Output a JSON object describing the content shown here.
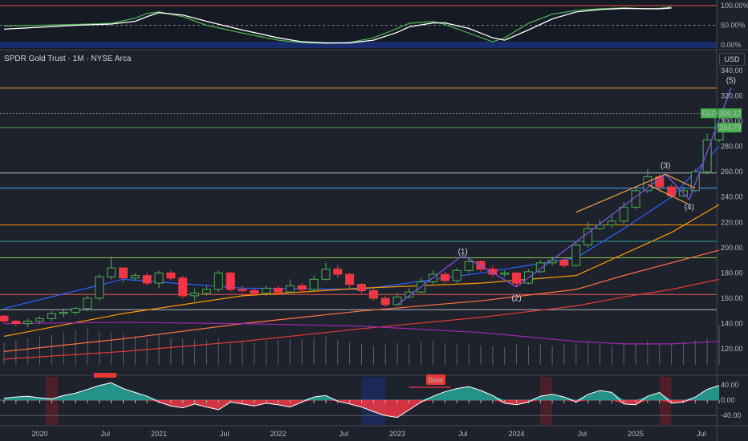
{
  "header": {
    "title": "SPDR Gold Trust · 1M · NYSE Arca",
    "currency_button": "USD"
  },
  "chart_data": [
    {
      "type": "line",
      "panel": "oscillator",
      "ylim": [
        0,
        100
      ],
      "yticks": [
        "100.00%",
        "50.00%",
        "0.00%"
      ],
      "series": [
        {
          "color": "#4caf50",
          "values": [
            [
              0,
              48
            ],
            [
              3,
              50
            ],
            [
              6,
              52
            ],
            [
              9,
              55
            ],
            [
              11,
              68
            ],
            [
              12,
              80
            ],
            [
              13,
              84
            ],
            [
              15,
              72
            ],
            [
              17,
              50
            ],
            [
              20,
              30
            ],
            [
              23,
              12
            ],
            [
              25,
              6
            ],
            [
              27,
              4
            ],
            [
              29,
              6
            ],
            [
              31,
              18
            ],
            [
              33,
              42
            ],
            [
              34,
              55
            ],
            [
              36,
              60
            ],
            [
              37,
              52
            ],
            [
              39,
              30
            ],
            [
              41,
              8
            ],
            [
              42,
              18
            ],
            [
              44,
              55
            ],
            [
              46,
              78
            ],
            [
              48,
              88
            ],
            [
              50,
              92
            ],
            [
              52,
              94
            ],
            [
              54,
              92
            ],
            [
              55,
              93
            ],
            [
              56,
              97
            ]
          ]
        },
        {
          "color": "#ffffff",
          "values": [
            [
              0,
              40
            ],
            [
              3,
              45
            ],
            [
              6,
              50
            ],
            [
              9,
              53
            ],
            [
              11,
              60
            ],
            [
              12,
              72
            ],
            [
              13,
              82
            ],
            [
              15,
              76
            ],
            [
              17,
              60
            ],
            [
              20,
              38
            ],
            [
              23,
              18
            ],
            [
              25,
              8
            ],
            [
              27,
              5
            ],
            [
              29,
              5
            ],
            [
              31,
              12
            ],
            [
              33,
              32
            ],
            [
              34,
              46
            ],
            [
              36,
              56
            ],
            [
              37,
              56
            ],
            [
              39,
              42
            ],
            [
              41,
              18
            ],
            [
              42,
              12
            ],
            [
              44,
              38
            ],
            [
              46,
              66
            ],
            [
              48,
              84
            ],
            [
              50,
              90
            ],
            [
              52,
              93
            ],
            [
              54,
              92
            ],
            [
              55,
              92
            ],
            [
              56,
              94
            ]
          ]
        }
      ]
    },
    {
      "type": "bar",
      "panel": "price",
      "ylim": [
        110,
        350
      ],
      "yticks": [
        "340.00",
        "320.00",
        "300.00",
        "280.00",
        "260.00",
        "240.00",
        "220.00",
        "200.00",
        "180.00",
        "160.00",
        "140.00",
        "120.00"
      ],
      "xticks": [
        {
          "label": "2020",
          "i": 3
        },
        {
          "label": "Jul",
          "i": 8.5
        },
        {
          "label": "2021",
          "i": 13
        },
        {
          "label": "Jul",
          "i": 18.5
        },
        {
          "label": "2022",
          "i": 23
        },
        {
          "label": "Jul",
          "i": 28.5
        },
        {
          "label": "2023",
          "i": 33
        },
        {
          "label": "Jul",
          "i": 38.5
        },
        {
          "label": "2024",
          "i": 43
        },
        {
          "label": "Jul",
          "i": 48.5
        },
        {
          "label": "2025",
          "i": 53
        },
        {
          "label": "Jul",
          "i": 58.5
        }
      ],
      "horizontal_levels": [
        {
          "value": 326,
          "color": "#f0a040"
        },
        {
          "value": 306,
          "color": "#787b86",
          "dotted": true
        },
        {
          "value": 294.8,
          "color": "#4caf50"
        },
        {
          "value": 259,
          "color": "#b2b5be"
        },
        {
          "value": 247,
          "color": "#42a5f5"
        },
        {
          "value": 218,
          "color": "#ff9800"
        },
        {
          "value": 205,
          "color": "#26a69a"
        },
        {
          "value": 192,
          "color": "#8bc34a"
        },
        {
          "value": 163,
          "color": "#ef5350"
        },
        {
          "value": 151,
          "color": "#b2b5be"
        }
      ],
      "candles": [
        [
          146,
          142,
          147,
          140
        ],
        [
          142,
          140,
          143,
          138
        ],
        [
          140,
          142,
          144,
          137
        ],
        [
          142,
          144,
          146,
          140
        ],
        [
          144,
          148,
          150,
          142
        ],
        [
          148,
          149,
          152,
          145
        ],
        [
          149,
          152,
          153,
          147
        ],
        [
          152,
          160,
          162,
          150
        ],
        [
          160,
          177,
          179,
          158
        ],
        [
          177,
          184,
          193,
          175
        ],
        [
          184,
          176,
          184,
          172
        ],
        [
          176,
          178,
          180,
          174
        ],
        [
          178,
          172,
          180,
          170
        ],
        [
          172,
          180,
          182,
          168
        ],
        [
          180,
          176,
          182,
          174
        ],
        [
          176,
          162,
          178,
          160
        ],
        [
          162,
          164,
          168,
          158
        ],
        [
          164,
          167,
          170,
          162
        ],
        [
          167,
          180,
          182,
          165
        ],
        [
          180,
          167,
          181,
          165
        ],
        [
          167,
          166,
          170,
          164
        ],
        [
          166,
          164,
          168,
          162
        ],
        [
          164,
          168,
          170,
          162
        ],
        [
          168,
          165,
          170,
          163
        ],
        [
          165,
          170,
          175,
          164
        ],
        [
          170,
          167,
          172,
          165
        ],
        [
          167,
          175,
          178,
          166
        ],
        [
          175,
          183,
          188,
          174
        ],
        [
          183,
          179,
          186,
          176
        ],
        [
          179,
          171,
          180,
          168
        ],
        [
          171,
          166,
          172,
          164
        ],
        [
          166,
          160,
          168,
          158
        ],
        [
          160,
          155,
          162,
          153
        ],
        [
          155,
          161,
          164,
          154
        ],
        [
          161,
          165,
          168,
          160
        ],
        [
          165,
          173,
          176,
          164
        ],
        [
          173,
          179,
          182,
          171
        ],
        [
          179,
          174,
          181,
          172
        ],
        [
          174,
          182,
          184,
          172
        ],
        [
          182,
          189,
          193,
          180
        ],
        [
          189,
          183,
          190,
          181
        ],
        [
          183,
          179,
          186,
          177
        ],
        [
          179,
          180,
          182,
          177
        ],
        [
          180,
          172,
          181,
          169
        ],
        [
          172,
          181,
          183,
          171
        ],
        [
          181,
          188,
          190,
          180
        ],
        [
          188,
          190,
          193,
          186
        ],
        [
          190,
          186,
          192,
          184
        ],
        [
          186,
          202,
          205,
          185
        ],
        [
          202,
          215,
          220,
          200
        ],
        [
          215,
          218,
          222,
          214
        ],
        [
          218,
          221,
          225,
          216
        ],
        [
          221,
          232,
          236,
          219
        ],
        [
          232,
          245,
          248,
          230
        ],
        [
          245,
          256,
          262,
          243
        ],
        [
          256,
          248,
          258,
          244
        ],
        [
          248,
          241,
          250,
          239
        ],
        [
          241,
          245,
          248,
          240
        ],
        [
          245,
          260,
          262,
          244
        ],
        [
          260,
          285,
          290,
          258
        ],
        [
          285,
          306,
          308,
          283
        ]
      ],
      "moving_averages": [
        {
          "color": "#2962ff",
          "values": [
            [
              0,
              152
            ],
            [
              10,
              175
            ],
            [
              20,
              168
            ],
            [
              30,
              167
            ],
            [
              40,
              180
            ],
            [
              48,
              192
            ],
            [
              52,
              215
            ],
            [
              56,
              240
            ],
            [
              60,
              280
            ]
          ]
        },
        {
          "color": "#ff9800",
          "values": [
            [
              0,
              130
            ],
            [
              10,
              148
            ],
            [
              20,
              162
            ],
            [
              30,
              168
            ],
            [
              40,
              172
            ],
            [
              48,
              178
            ],
            [
              52,
              195
            ],
            [
              56,
              212
            ],
            [
              60,
              234
            ]
          ]
        },
        {
          "color": "#ff7043",
          "values": [
            [
              0,
              118
            ],
            [
              10,
              128
            ],
            [
              20,
              140
            ],
            [
              30,
              150
            ],
            [
              40,
              158
            ],
            [
              48,
              167
            ],
            [
              52,
              178
            ],
            [
              56,
              188
            ],
            [
              60,
              198
            ]
          ]
        },
        {
          "color": "#e53935",
          "values": [
            [
              0,
              112
            ],
            [
              10,
              118
            ],
            [
              20,
              126
            ],
            [
              30,
              136
            ],
            [
              40,
              145
            ],
            [
              48,
              154
            ],
            [
              52,
              161
            ],
            [
              56,
              167
            ],
            [
              60,
              175
            ]
          ]
        },
        {
          "color": "#9c27b0",
          "values": [
            [
              0,
              140
            ],
            [
              10,
              141
            ],
            [
              20,
              140
            ],
            [
              30,
              138
            ],
            [
              40,
              133
            ],
            [
              48,
              126
            ],
            [
              52,
              124
            ],
            [
              56,
              124
            ],
            [
              60,
              126
            ]
          ]
        }
      ],
      "volume": [
        25,
        28,
        30,
        32,
        34,
        36,
        40,
        42,
        38,
        36,
        35,
        33,
        30,
        34,
        31,
        30,
        29,
        28,
        30,
        27,
        26,
        25,
        27,
        28,
        30,
        29,
        31,
        32,
        28,
        26,
        24,
        22,
        23,
        25,
        24,
        26,
        27,
        25,
        23,
        24,
        22,
        21,
        20,
        23,
        22,
        24,
        21,
        23,
        25,
        27,
        24,
        22,
        26,
        25,
        28,
        24,
        23,
        26,
        28,
        30,
        45
      ],
      "wave_labels": [
        {
          "text": "(1)",
          "i": 38.5,
          "v": 195
        },
        {
          "text": "(2)",
          "i": 43,
          "v": 158
        },
        {
          "text": "(3)",
          "i": 55.5,
          "v": 263
        },
        {
          "text": "(4)",
          "i": 57.5,
          "v": 230
        },
        {
          "text": "(5)",
          "i": 61,
          "v": 330
        }
      ],
      "price_tags": [
        {
          "text": "GLD",
          "value": 306.12,
          "color": "#4caf50"
        },
        {
          "text": "306.12",
          "value": 306.12,
          "color": "#4caf50"
        },
        {
          "text": "294.79",
          "value": 294.79,
          "color": "#4caf50"
        }
      ]
    },
    {
      "type": "bar",
      "panel": "momentum",
      "ylim": [
        -50,
        55
      ],
      "yticks": [
        "40.00",
        "0.00",
        "-40.00"
      ],
      "values": [
        5,
        8,
        10,
        6,
        3,
        12,
        18,
        28,
        38,
        45,
        30,
        20,
        10,
        -5,
        -15,
        -20,
        -10,
        -18,
        -25,
        -5,
        -10,
        -15,
        -8,
        -12,
        -18,
        -5,
        8,
        12,
        -3,
        -10,
        -18,
        -30,
        -40,
        -45,
        -25,
        -5,
        10,
        22,
        30,
        35,
        25,
        12,
        -8,
        -12,
        -5,
        10,
        15,
        8,
        -5,
        15,
        25,
        20,
        -10,
        -12,
        10,
        20,
        -8,
        -5,
        8,
        28,
        38
      ],
      "signal_label": "Bear",
      "highlight_color": "#e53935"
    }
  ]
}
